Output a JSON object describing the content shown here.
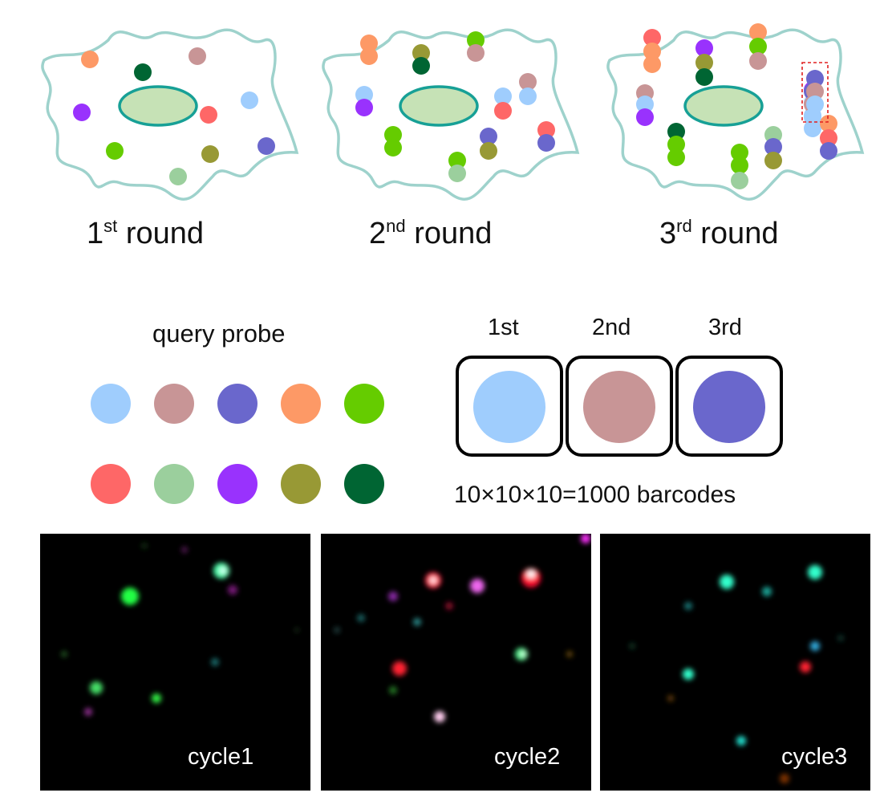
{
  "rounds": [
    {
      "num": "1",
      "suffix": "st",
      "word": "round"
    },
    {
      "num": "2",
      "suffix": "nd",
      "word": "round"
    },
    {
      "num": "3",
      "suffix": "rd",
      "word": "round"
    }
  ],
  "query_probe": {
    "title": "query probe",
    "colors": [
      "#9fcdfd",
      "#c89596",
      "#6a67cc",
      "#fd9966",
      "#65cc00",
      "#fe6767",
      "#9bcf9d",
      "#9932fd",
      "#989935",
      "#006533"
    ]
  },
  "barcode": {
    "slots": [
      {
        "label": "1st",
        "color": "#9fcdfd"
      },
      {
        "label": "2nd",
        "color": "#c89596"
      },
      {
        "label": "3rd",
        "color": "#6a67cc"
      }
    ],
    "caption": "10×10×10=1000 barcodes"
  },
  "cell_colors": {
    "membrane": "#9ed2cc",
    "nucleus_fill": "#c6e2b6",
    "nucleus_stroke": "#17a096",
    "highlight_box": "#e02020"
  },
  "cycles": [
    "cycle1",
    "cycle2",
    "cycle3"
  ]
}
